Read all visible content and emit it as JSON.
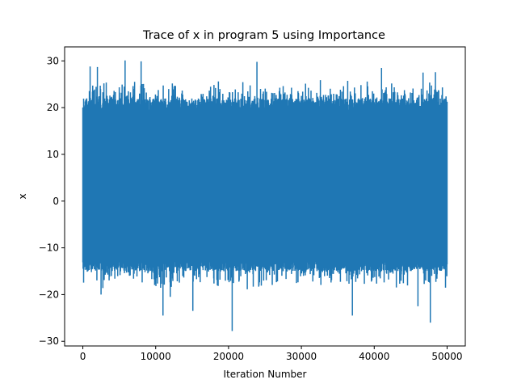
{
  "chart_data": {
    "type": "line",
    "title": "Trace of x in program 5 using Importance",
    "xlabel": "Iteration Number",
    "ylabel": "x",
    "xlim": [
      -2500,
      52500
    ],
    "ylim": [
      -31,
      33
    ],
    "x_ticks": [
      0,
      10000,
      20000,
      30000,
      40000,
      50000
    ],
    "y_ticks": [
      -30,
      -20,
      -10,
      0,
      10,
      20,
      30
    ],
    "x_tick_labels": [
      "0",
      "10000",
      "20000",
      "30000",
      "40000",
      "50000"
    ],
    "y_tick_labels": [
      "−30",
      "−20",
      "−10",
      "0",
      "10",
      "20",
      "30"
    ],
    "grid": false,
    "series": [
      {
        "color": "#1f77b4",
        "n_points": 50000,
        "typical_band": [
          -15,
          22
        ],
        "spikes": [
          {
            "x": 1000,
            "y": 28.8
          },
          {
            "x": 2000,
            "y": 28.7
          },
          {
            "x": 5800,
            "y": 30.1
          },
          {
            "x": 8000,
            "y": 29.9
          },
          {
            "x": 23900,
            "y": 29.8
          },
          {
            "x": 41000,
            "y": 28.5
          },
          {
            "x": 46700,
            "y": 27.5
          },
          {
            "x": 48400,
            "y": 27.6
          },
          {
            "x": 11000,
            "y": -24.5
          },
          {
            "x": 15100,
            "y": -23.5
          },
          {
            "x": 20500,
            "y": -27.8
          },
          {
            "x": 37000,
            "y": -24.5
          },
          {
            "x": 47700,
            "y": -26.0
          },
          {
            "x": 46000,
            "y": -22.5
          },
          {
            "x": 2500,
            "y": -20.0
          },
          {
            "x": 12000,
            "y": -20.5
          }
        ]
      }
    ]
  }
}
